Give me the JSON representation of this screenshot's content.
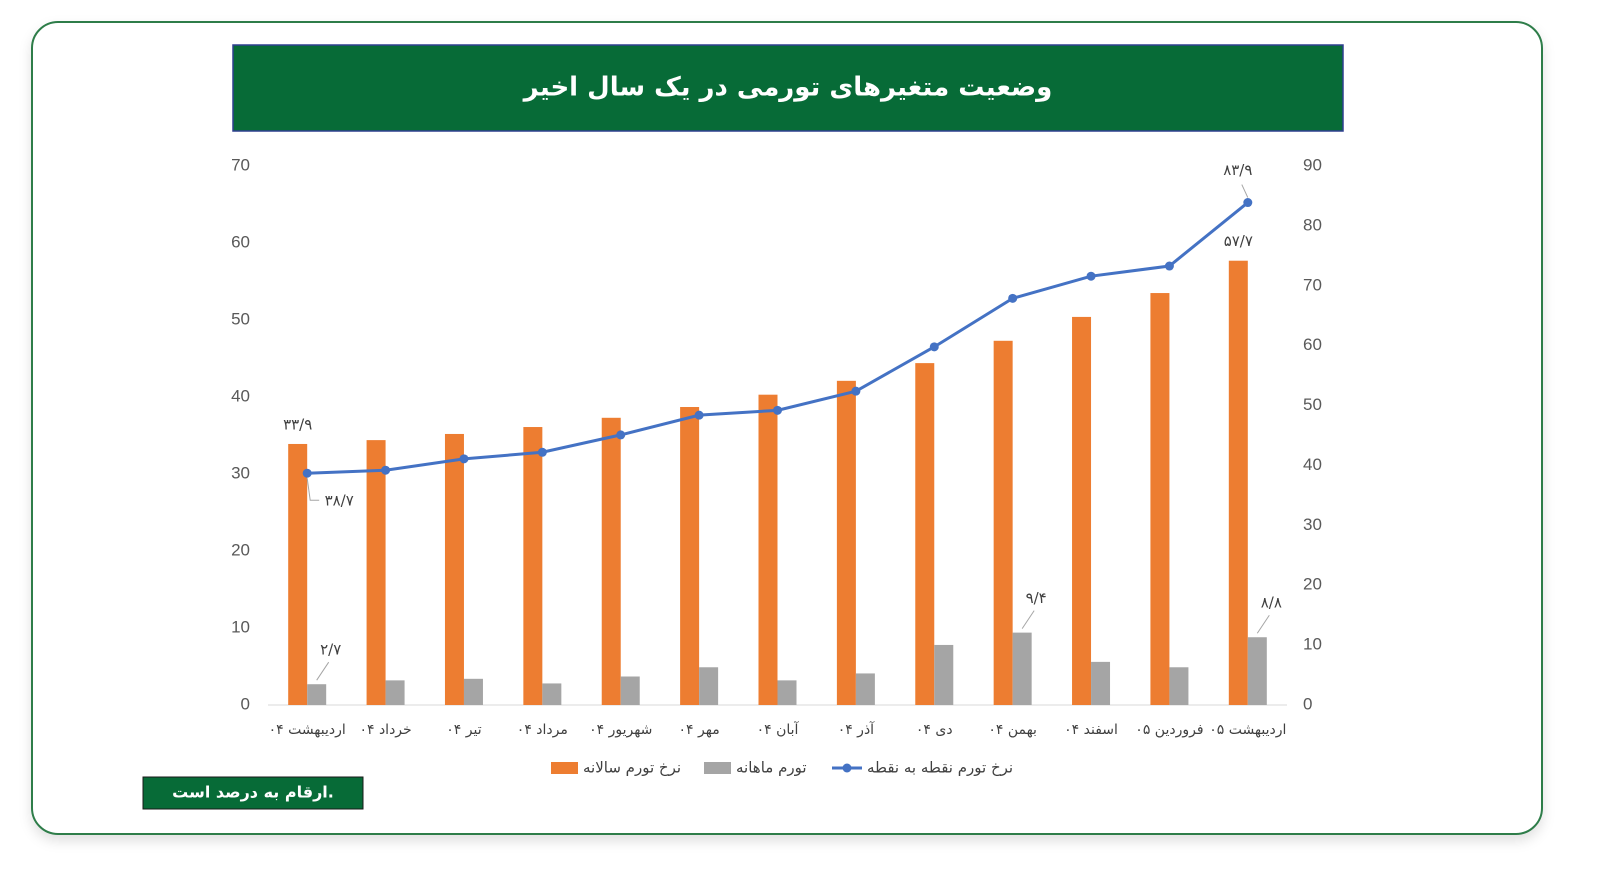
{
  "chart_data": {
    "type": "bar_line",
    "title": "وضعیت متغیرهای تورمی در یک سال اخیر",
    "note": "ارقام به درصد است.",
    "categories": [
      "اردیبهشت ۰۴",
      "خرداد ۰۴",
      "تیر ۰۴",
      "مرداد ۰۴",
      "شهریور ۰۴",
      "مهر ۰۴",
      "آبان ۰۴",
      "آذر ۰۴",
      "دی ۰۴",
      "بهمن ۰۴",
      "اسفند ۰۴",
      "فروردین ۰۵",
      "اردیبهشت ۰۵"
    ],
    "series": [
      {
        "name": "نرخ تورم سالانه",
        "type": "bar",
        "color": "#ed7d31",
        "values": [
          33.9,
          34.4,
          35.2,
          36.1,
          37.3,
          38.7,
          40.3,
          42.1,
          44.4,
          47.3,
          50.4,
          53.5,
          57.7
        ],
        "value_labels": [
          "۳۳/۹",
          null,
          null,
          null,
          null,
          null,
          null,
          null,
          null,
          null,
          null,
          null,
          "۵۷/۷"
        ]
      },
      {
        "name": "تورم ماهانه",
        "type": "bar",
        "color": "#a5a5a5",
        "values": [
          2.7,
          3.2,
          3.4,
          2.8,
          3.7,
          4.9,
          3.2,
          4.1,
          7.8,
          9.4,
          5.6,
          4.9,
          8.8
        ],
        "value_labels": [
          "۲/۷",
          null,
          null,
          null,
          null,
          null,
          null,
          null,
          null,
          "۹/۴",
          null,
          null,
          "۸/۸"
        ]
      },
      {
        "name": "نرخ تورم نقطه به نقطه",
        "type": "line",
        "axis": "y2",
        "color": "#4472c4",
        "values": [
          38.7,
          39.2,
          41.1,
          42.2,
          45.1,
          48.4,
          49.2,
          52.4,
          59.8,
          67.9,
          71.6,
          73.3,
          83.9
        ],
        "value_labels": [
          "۳۸/۷",
          null,
          null,
          null,
          null,
          null,
          null,
          null,
          null,
          null,
          null,
          null,
          "۸۳/۹"
        ]
      }
    ],
    "ylim": [
      0,
      70
    ],
    "yticks": [
      0,
      10,
      20,
      30,
      40,
      50,
      60,
      70
    ],
    "y2lim": [
      0,
      90
    ],
    "y2ticks": [
      0,
      10,
      20,
      30,
      40,
      50,
      60,
      70,
      80,
      90
    ],
    "grid": false
  }
}
